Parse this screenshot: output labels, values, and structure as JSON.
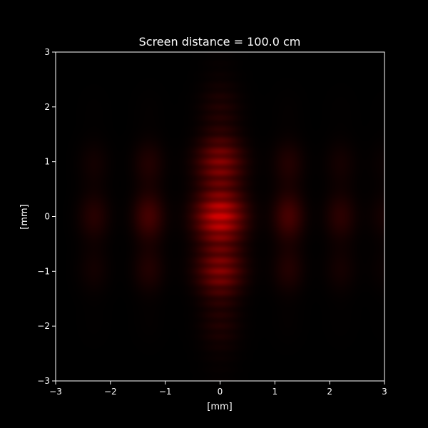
{
  "chart_data": {
    "type": "heatmap",
    "title": "Screen distance = 100.0 cm",
    "xlabel": "[mm]",
    "ylabel": "[mm]",
    "xlim": [
      -3,
      3
    ],
    "ylim": [
      -3,
      3
    ],
    "xticks": [
      -3,
      -2,
      -1,
      0,
      1,
      2,
      3
    ],
    "yticks": [
      -3,
      -2,
      -1,
      0,
      1,
      2,
      3
    ],
    "xtick_labels": [
      "−3",
      "−2",
      "−1",
      "0",
      "1",
      "2",
      "3"
    ],
    "ytick_labels": [
      "−3",
      "−2",
      "−1",
      "0",
      "1",
      "2",
      "3"
    ],
    "colormap": "black-to-red",
    "colors": {
      "background": "#000000",
      "axis": "#ffffff",
      "intensity": "#d00000"
    },
    "intensity_pattern": {
      "horizontal_lobe_centers_mm": [
        -2.3,
        -1.3,
        0.0,
        1.25,
        2.2,
        3.0
      ],
      "horizontal_lobe_peaks": [
        0.18,
        0.32,
        1.0,
        0.33,
        0.2,
        0.1
      ],
      "vertical_band_centers_mm": [
        0.85,
        0.25,
        -0.25,
        -0.85
      ],
      "central_lobe_extent_mm": [
        -3,
        3
      ],
      "grid": false
    }
  }
}
